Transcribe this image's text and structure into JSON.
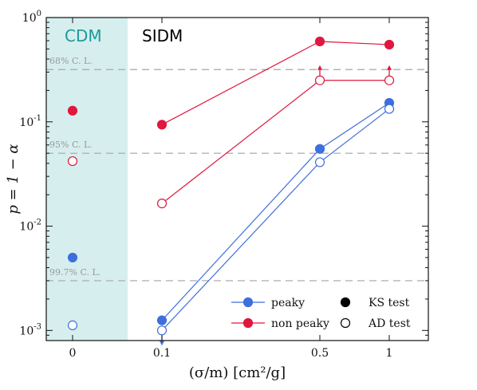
{
  "chart_data": {
    "type": "scatter",
    "xlabel": "(σ/m) [cm²/g]",
    "ylabel": "p = 1 − α",
    "y_scale": "log",
    "ylim": [
      0.0008,
      1.0
    ],
    "x_ticks": [
      {
        "label": "0",
        "value": 0
      },
      {
        "label": "0.1",
        "value": 0.1
      },
      {
        "label": "0.5",
        "value": 0.5
      },
      {
        "label": "1",
        "value": 1
      }
    ],
    "y_ticks": [
      {
        "value": 0.001,
        "base": "10",
        "exp": "-3"
      },
      {
        "value": 0.01,
        "base": "10",
        "exp": "-2"
      },
      {
        "value": 0.1,
        "base": "10",
        "exp": "-1"
      },
      {
        "value": 1.0,
        "base": "10",
        "exp": "0"
      }
    ],
    "regions": [
      {
        "label": "CDM",
        "color": "#1a9a9a",
        "shaded": true
      },
      {
        "label": "SIDM",
        "color": "#000000",
        "shaded": false
      }
    ],
    "cdm_shade_color": "#d6eeee",
    "reference_lines": [
      {
        "value": 0.317,
        "label": "68% C. L."
      },
      {
        "value": 0.05,
        "label": "95% C. L."
      },
      {
        "value": 0.003,
        "label": "99.7% C. L."
      }
    ],
    "series": [
      {
        "name": "peaky",
        "test": "KS test",
        "color": "#3e6fdc",
        "filled": true,
        "points": [
          {
            "x": 0,
            "y": 0.005,
            "connected": false
          },
          {
            "x": 0.1,
            "y": 0.00125,
            "connected": true
          },
          {
            "x": 0.5,
            "y": 0.055,
            "connected": true
          },
          {
            "x": 1,
            "y": 0.152,
            "connected": true
          }
        ]
      },
      {
        "name": "peaky",
        "test": "AD test",
        "color": "#3e6fdc",
        "filled": false,
        "points": [
          {
            "x": 0,
            "y": 0.00112,
            "connected": false
          },
          {
            "x": 0.1,
            "y": 0.001,
            "connected": true,
            "upper_limit": true
          },
          {
            "x": 0.5,
            "y": 0.041,
            "connected": true
          },
          {
            "x": 1,
            "y": 0.133,
            "connected": true
          }
        ]
      },
      {
        "name": "non peaky",
        "test": "KS test",
        "color": "#e0173e",
        "filled": true,
        "points": [
          {
            "x": 0,
            "y": 0.128,
            "connected": false
          },
          {
            "x": 0.1,
            "y": 0.094,
            "connected": true
          },
          {
            "x": 0.5,
            "y": 0.59,
            "connected": true
          },
          {
            "x": 1,
            "y": 0.55,
            "connected": true
          }
        ]
      },
      {
        "name": "non peaky",
        "test": "AD test",
        "color": "#e0173e",
        "filled": false,
        "points": [
          {
            "x": 0,
            "y": 0.042,
            "connected": false
          },
          {
            "x": 0.1,
            "y": 0.0165,
            "connected": true
          },
          {
            "x": 0.5,
            "y": 0.25,
            "connected": true,
            "lower_limit": true
          },
          {
            "x": 1,
            "y": 0.25,
            "connected": true,
            "lower_limit": true
          }
        ]
      }
    ],
    "legend": {
      "placement": "lower-right",
      "color_entries": [
        {
          "label": "peaky",
          "color": "#3e6fdc"
        },
        {
          "label": "non peaky",
          "color": "#e0173e"
        }
      ],
      "marker_entries": [
        {
          "label": "KS test",
          "filled": true
        },
        {
          "label": "AD test",
          "filled": false
        }
      ]
    }
  }
}
